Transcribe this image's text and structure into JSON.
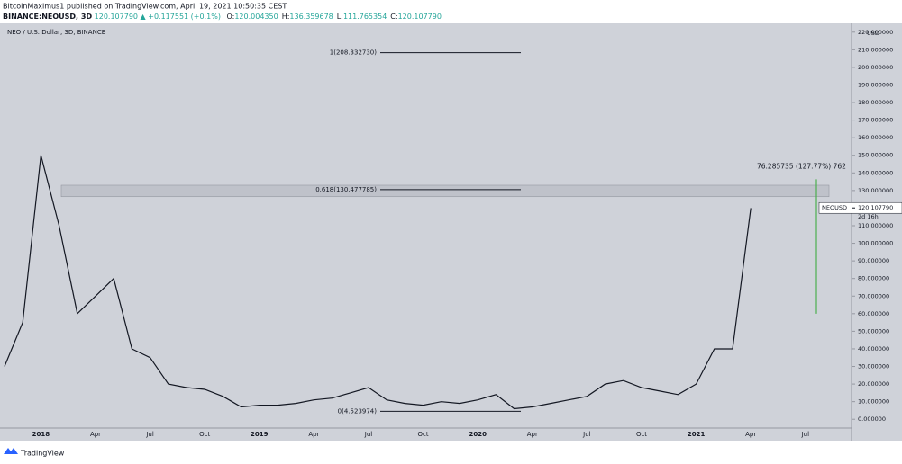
{
  "header": {
    "author_line": "BitcoinMaximus1 published on TradingView.com, April 19, 2021 10:50:35 CEST",
    "symbol": "BINANCE:NEOUSD, 3D",
    "last": "120.107790",
    "arrow": "▲",
    "change": "+0.117551 (+0.1%)",
    "ohlc": [
      {
        "k": "O:",
        "v": "120.004350"
      },
      {
        "k": "H:",
        "v": "136.359678"
      },
      {
        "k": "L:",
        "v": "111.765354"
      },
      {
        "k": "C:",
        "v": "120.107790"
      }
    ]
  },
  "footer": {
    "brand": "TradingView"
  },
  "chart_data": {
    "type": "line",
    "legend": "NEO / U.S. Dollar, 3D, BINANCE",
    "y_unit": "USD",
    "categories": [
      null,
      null,
      "2018",
      null,
      null,
      "Apr",
      null,
      null,
      "Jul",
      null,
      null,
      "Oct",
      null,
      null,
      "2019",
      null,
      null,
      "Apr",
      null,
      null,
      "Jul",
      null,
      null,
      "Oct",
      null,
      null,
      "2020",
      null,
      null,
      "Apr",
      null,
      null,
      "Jul",
      null,
      null,
      "Oct",
      null,
      null,
      "2021",
      null,
      null,
      "Apr",
      null,
      null,
      "Jul",
      null
    ],
    "series": [
      {
        "name": "NEOUSD",
        "color": "#131722",
        "values": [
          30,
          55,
          150,
          110,
          60,
          70,
          80,
          40,
          35,
          20,
          18,
          17,
          13,
          7,
          8,
          8,
          9,
          11,
          12,
          15,
          18,
          11,
          9,
          8,
          10,
          9,
          11,
          14,
          6,
          7,
          9,
          11,
          13,
          20,
          22,
          18,
          16,
          14,
          20,
          40,
          40,
          120,
          null,
          null,
          null,
          null
        ]
      }
    ],
    "ylim": [
      -5,
      225
    ],
    "yticks": [
      {
        "value": 0,
        "label": "0.000000"
      },
      {
        "value": 10,
        "label": "10.000000"
      },
      {
        "value": 20,
        "label": "20.000000"
      },
      {
        "value": 30,
        "label": "30.000000"
      },
      {
        "value": 40,
        "label": "40.000000"
      },
      {
        "value": 50,
        "label": "50.000000"
      },
      {
        "value": 60,
        "label": "60.000000"
      },
      {
        "value": 70,
        "label": "70.000000"
      },
      {
        "value": 80,
        "label": "80.000000"
      },
      {
        "value": 90,
        "label": "90.000000"
      },
      {
        "value": 100,
        "label": "100.000000"
      },
      {
        "value": 110,
        "label": "110.000000"
      },
      {
        "value": 120,
        "label": "120.000000"
      },
      {
        "value": 130,
        "label": "130.000000"
      },
      {
        "value": 140,
        "label": "140.000000"
      },
      {
        "value": 150,
        "label": "150.000000"
      },
      {
        "value": 160,
        "label": "160.000000"
      },
      {
        "value": 170,
        "label": "170.000000"
      },
      {
        "value": 180,
        "label": "180.000000"
      },
      {
        "value": 190,
        "label": "190.000000"
      },
      {
        "value": 200,
        "label": "200.000000"
      },
      {
        "value": 210,
        "label": "210.000000"
      },
      {
        "value": 220,
        "label": "220.000000"
      }
    ],
    "fib": [
      {
        "value": 208.33273,
        "label": "1(208.332730)"
      },
      {
        "value": 130.477785,
        "label": "0.618(130.477785)"
      },
      {
        "value": 4.523974,
        "label": "0(4.523974)"
      }
    ],
    "zone": [
      126.5,
      133
    ],
    "measure": {
      "label": "76.285735 (127.77%) 762",
      "from": 60,
      "to": 136.359678,
      "color": "#4caf50"
    },
    "price_label": {
      "name": "NEOUSD",
      "value": 120.10779,
      "label": "120.107790",
      "countdown": "2d 16h"
    }
  }
}
